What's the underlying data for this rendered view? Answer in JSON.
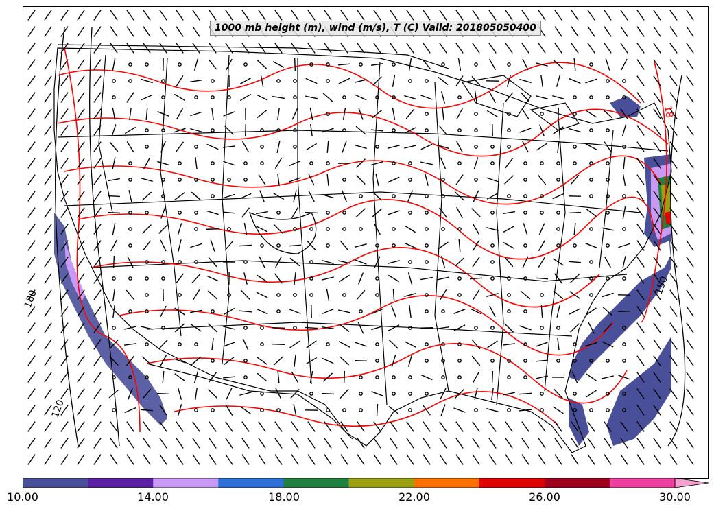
{
  "title": "1000 mb height (m), wind (m/s), T (C) Valid: 201805050400",
  "map": {
    "region": "Contiguous United States",
    "layers": [
      "state boundaries",
      "coastlines",
      "height contours (black)",
      "temperature contours (red)",
      "wind barbs",
      "wind speed shading"
    ],
    "contour_labels": [
      {
        "text": "180",
        "color": "#000000"
      },
      {
        "text": "120",
        "color": "#000000"
      },
      {
        "text": "150",
        "color": "#000000"
      },
      {
        "text": "18",
        "color": "#ff0000"
      }
    ]
  },
  "colorbar": {
    "range": [
      10,
      30
    ],
    "extend": "max",
    "colors": [
      "#4a4f9a",
      "#5a1fa0",
      "#c89af5",
      "#2f6fd8",
      "#1f8040",
      "#9aa010",
      "#ff7000",
      "#e00000",
      "#a0001c",
      "#ef3fa0",
      "#f7a0cf"
    ],
    "tick_labels": [
      "10.00",
      "14.00",
      "18.00",
      "22.00",
      "26.00",
      "30.00"
    ]
  }
}
